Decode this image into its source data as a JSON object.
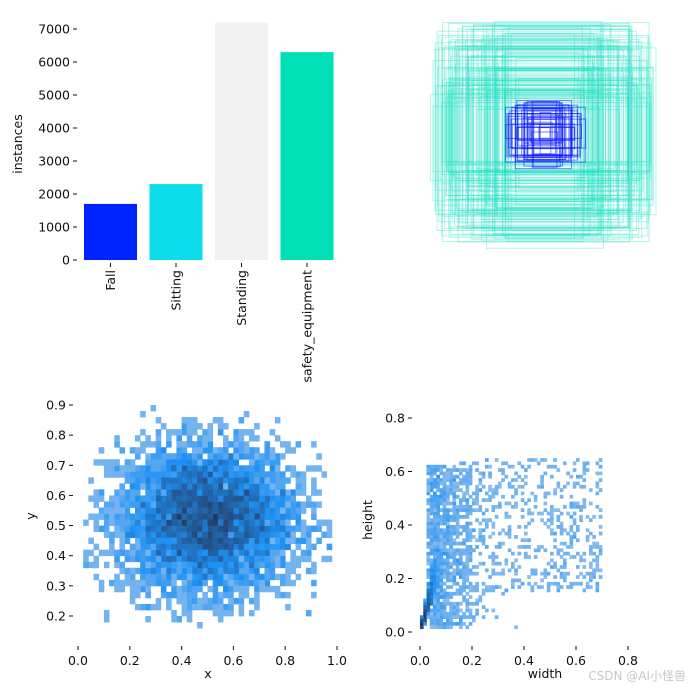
{
  "chart_data": [
    {
      "type": "bar",
      "title": "",
      "xlabel": "",
      "ylabel": "instances",
      "categories": [
        "Fall",
        "Sitting",
        "Standing",
        "safety_equipment"
      ],
      "values": [
        1700,
        2300,
        7200,
        6300
      ],
      "colors": [
        "#0022ff",
        "#0cdcec",
        "#f2f2f2",
        "#00dfb6"
      ],
      "ylim": [
        0,
        7000
      ],
      "yticks": [
        "0",
        "1000",
        "2000",
        "3000",
        "4000",
        "5000",
        "6000",
        "7000"
      ],
      "grid": false
    },
    {
      "type": "box-overlay",
      "title": "",
      "colors": [
        "#19e3c0",
        "#0a1cff"
      ]
    },
    {
      "type": "heatmap",
      "xlabel": "x",
      "ylabel": "y",
      "xlim": [
        0,
        1.0
      ],
      "ylim": [
        0.15,
        0.9
      ],
      "xticks": [
        "0.0",
        "0.2",
        "0.4",
        "0.6",
        "0.8",
        "1.0"
      ],
      "yticks": [
        "0.2",
        "0.3",
        "0.4",
        "0.5",
        "0.6",
        "0.7",
        "0.8",
        "0.9"
      ],
      "color": "#1f8ef1"
    },
    {
      "type": "heatmap",
      "xlabel": "width",
      "ylabel": "height",
      "xlim": [
        0,
        0.95
      ],
      "ylim": [
        0,
        0.85
      ],
      "xticks": [
        "0.0",
        "0.2",
        "0.4",
        "0.6",
        "0.8"
      ],
      "yticks": [
        "0.0",
        "0.2",
        "0.4",
        "0.6",
        "0.8"
      ],
      "color": "#1f8ef1"
    }
  ],
  "watermark": "CSDN @AI小怪兽"
}
